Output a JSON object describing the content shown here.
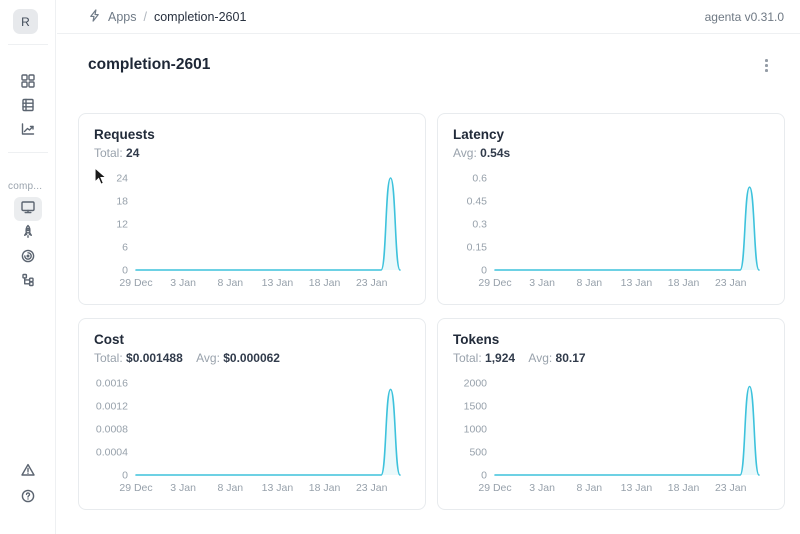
{
  "header": {
    "breadcrumb": {
      "app_icon": "bolt-icon",
      "section": "Apps",
      "separator": "/",
      "current": "completion-2601"
    },
    "version": "agenta v0.31.0"
  },
  "sidebar": {
    "avatar_letter": "R",
    "workspace_label": "comp...",
    "nav_top": [
      {
        "name": "apps",
        "icon": "grid-icon"
      },
      {
        "name": "registry",
        "icon": "table-icon"
      },
      {
        "name": "analytics",
        "icon": "line-chart-icon"
      }
    ],
    "nav_app": [
      {
        "name": "overview",
        "icon": "monitor-icon",
        "selected": true
      },
      {
        "name": "deploy",
        "icon": "rocket-icon",
        "selected": false
      },
      {
        "name": "observability",
        "icon": "swirl-icon",
        "selected": false
      },
      {
        "name": "traces",
        "icon": "tree-icon",
        "selected": false
      }
    ],
    "nav_bottom": [
      {
        "name": "alerts",
        "icon": "alert-triangle-icon"
      },
      {
        "name": "help",
        "icon": "question-circle-icon"
      }
    ]
  },
  "main": {
    "title": "completion-2601",
    "menu_icon": "kebab-icon"
  },
  "colors": {
    "accent_line": "#3DC2DC",
    "accent_fill": "rgba(61,194,220,0.10)",
    "tick_text": "#97a1ab"
  },
  "chart_data": [
    {
      "type": "line",
      "title": "Requests",
      "stats": [
        {
          "label": "Total:",
          "value": "24"
        }
      ],
      "x": [
        "29 Dec",
        "30 Dec",
        "31 Dec",
        "1 Jan",
        "2 Jan",
        "3 Jan",
        "4 Jan",
        "5 Jan",
        "6 Jan",
        "7 Jan",
        "8 Jan",
        "9 Jan",
        "10 Jan",
        "11 Jan",
        "12 Jan",
        "13 Jan",
        "14 Jan",
        "15 Jan",
        "16 Jan",
        "17 Jan",
        "18 Jan",
        "19 Jan",
        "20 Jan",
        "21 Jan",
        "22 Jan",
        "23 Jan",
        "24 Jan",
        "25 Jan",
        "26 Jan"
      ],
      "series": [
        {
          "name": "Requests",
          "values": [
            0,
            0,
            0,
            0,
            0,
            0,
            0,
            0,
            0,
            0,
            0,
            0,
            0,
            0,
            0,
            0,
            0,
            0,
            0,
            0,
            0,
            0,
            0,
            0,
            0,
            0,
            0,
            24,
            0
          ]
        }
      ],
      "x_tick_labels": [
        "29 Dec",
        "3 Jan",
        "8 Jan",
        "13 Jan",
        "18 Jan",
        "23 Jan"
      ],
      "y_ticks": [
        0,
        6,
        12,
        18,
        24
      ],
      "ylim": [
        0,
        24
      ],
      "grid": false,
      "legend": false
    },
    {
      "type": "line",
      "title": "Latency",
      "stats": [
        {
          "label": "Avg:",
          "value": "0.54s"
        }
      ],
      "x": [
        "29 Dec",
        "30 Dec",
        "31 Dec",
        "1 Jan",
        "2 Jan",
        "3 Jan",
        "4 Jan",
        "5 Jan",
        "6 Jan",
        "7 Jan",
        "8 Jan",
        "9 Jan",
        "10 Jan",
        "11 Jan",
        "12 Jan",
        "13 Jan",
        "14 Jan",
        "15 Jan",
        "16 Jan",
        "17 Jan",
        "18 Jan",
        "19 Jan",
        "20 Jan",
        "21 Jan",
        "22 Jan",
        "23 Jan",
        "24 Jan",
        "25 Jan",
        "26 Jan"
      ],
      "series": [
        {
          "name": "Latency",
          "values": [
            0,
            0,
            0,
            0,
            0,
            0,
            0,
            0,
            0,
            0,
            0,
            0,
            0,
            0,
            0,
            0,
            0,
            0,
            0,
            0,
            0,
            0,
            0,
            0,
            0,
            0,
            0,
            0.54,
            0
          ]
        }
      ],
      "x_tick_labels": [
        "29 Dec",
        "3 Jan",
        "8 Jan",
        "13 Jan",
        "18 Jan",
        "23 Jan"
      ],
      "y_ticks": [
        0,
        0.15,
        0.3,
        0.45,
        0.6
      ],
      "ylim": [
        0,
        0.6
      ],
      "grid": false,
      "legend": false
    },
    {
      "type": "line",
      "title": "Cost",
      "stats": [
        {
          "label": "Total:",
          "value": "$0.001488"
        },
        {
          "label": "Avg:",
          "value": "$0.000062"
        }
      ],
      "x": [
        "29 Dec",
        "30 Dec",
        "31 Dec",
        "1 Jan",
        "2 Jan",
        "3 Jan",
        "4 Jan",
        "5 Jan",
        "6 Jan",
        "7 Jan",
        "8 Jan",
        "9 Jan",
        "10 Jan",
        "11 Jan",
        "12 Jan",
        "13 Jan",
        "14 Jan",
        "15 Jan",
        "16 Jan",
        "17 Jan",
        "18 Jan",
        "19 Jan",
        "20 Jan",
        "21 Jan",
        "22 Jan",
        "23 Jan",
        "24 Jan",
        "25 Jan",
        "26 Jan"
      ],
      "series": [
        {
          "name": "Cost",
          "values": [
            0,
            0,
            0,
            0,
            0,
            0,
            0,
            0,
            0,
            0,
            0,
            0,
            0,
            0,
            0,
            0,
            0,
            0,
            0,
            0,
            0,
            0,
            0,
            0,
            0,
            0,
            0,
            0.001488,
            0
          ]
        }
      ],
      "x_tick_labels": [
        "29 Dec",
        "3 Jan",
        "8 Jan",
        "13 Jan",
        "18 Jan",
        "23 Jan"
      ],
      "y_ticks": [
        0,
        0.0004,
        0.0008,
        0.0012,
        0.0016
      ],
      "ylim": [
        0,
        0.0016
      ],
      "grid": false,
      "legend": false
    },
    {
      "type": "line",
      "title": "Tokens",
      "stats": [
        {
          "label": "Total:",
          "value": "1,924"
        },
        {
          "label": "Avg:",
          "value": "80.17"
        }
      ],
      "x": [
        "29 Dec",
        "30 Dec",
        "31 Dec",
        "1 Jan",
        "2 Jan",
        "3 Jan",
        "4 Jan",
        "5 Jan",
        "6 Jan",
        "7 Jan",
        "8 Jan",
        "9 Jan",
        "10 Jan",
        "11 Jan",
        "12 Jan",
        "13 Jan",
        "14 Jan",
        "15 Jan",
        "16 Jan",
        "17 Jan",
        "18 Jan",
        "19 Jan",
        "20 Jan",
        "21 Jan",
        "22 Jan",
        "23 Jan",
        "24 Jan",
        "25 Jan",
        "26 Jan"
      ],
      "series": [
        {
          "name": "Tokens",
          "values": [
            0,
            0,
            0,
            0,
            0,
            0,
            0,
            0,
            0,
            0,
            0,
            0,
            0,
            0,
            0,
            0,
            0,
            0,
            0,
            0,
            0,
            0,
            0,
            0,
            0,
            0,
            0,
            1924,
            0
          ]
        }
      ],
      "x_tick_labels": [
        "29 Dec",
        "3 Jan",
        "8 Jan",
        "13 Jan",
        "18 Jan",
        "23 Jan"
      ],
      "y_ticks": [
        0,
        500,
        1000,
        1500,
        2000
      ],
      "ylim": [
        0,
        2000
      ],
      "grid": false,
      "legend": false
    }
  ]
}
